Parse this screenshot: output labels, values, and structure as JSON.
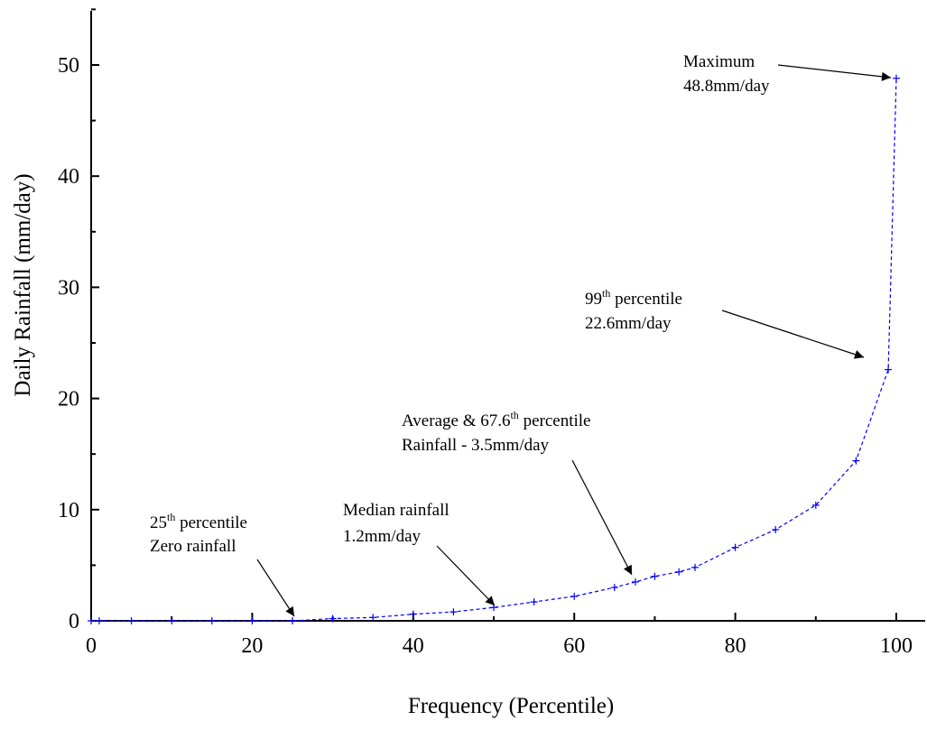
{
  "chart_data": {
    "type": "line",
    "xlabel": "Frequency (Percentile)",
    "ylabel": "Daily Rainfall (mm/day)",
    "xlim": [
      0,
      100
    ],
    "ylim": [
      0,
      50
    ],
    "x_ticks": [
      0,
      20,
      40,
      60,
      80,
      100
    ],
    "y_ticks": [
      0,
      10,
      20,
      30,
      40,
      50
    ],
    "grid": false,
    "series": [
      {
        "color": "#0000ff",
        "line_style": "dashed",
        "marker": "plus",
        "x": [
          0,
          1,
          5,
          10,
          15,
          20,
          25,
          30,
          35,
          40,
          45,
          50,
          55,
          60,
          65,
          67.6,
          70,
          73,
          75,
          80,
          85,
          90,
          95,
          99,
          100
        ],
        "y": [
          0,
          0,
          0,
          0,
          0,
          0,
          0,
          0.2,
          0.3,
          0.6,
          0.8,
          1.2,
          1.7,
          2.2,
          3.0,
          3.5,
          4.0,
          4.4,
          4.8,
          6.6,
          8.2,
          10.4,
          14.4,
          22.6,
          48.8
        ]
      }
    ],
    "annotations": [
      {
        "id": "max",
        "lines": [
          [
            {
              "t": "Maximum"
            }
          ],
          [
            {
              "t": "48.8mm/day"
            }
          ]
        ],
        "target": [
          100,
          48.8
        ]
      },
      {
        "id": "p99",
        "lines": [
          [
            {
              "t": "99"
            },
            {
              "t": "th",
              "sup": true
            },
            {
              "t": " percentile"
            }
          ],
          [
            {
              "t": "22.6mm/day"
            }
          ]
        ],
        "target": [
          99,
          22.6
        ]
      },
      {
        "id": "avg",
        "lines": [
          [
            {
              "t": "Average & 67.6"
            },
            {
              "t": "th",
              "sup": true
            },
            {
              "t": " percentile"
            }
          ],
          [
            {
              "t": "Rainfall - 3.5mm/day"
            }
          ]
        ],
        "target": [
          67.6,
          3.5
        ]
      },
      {
        "id": "median",
        "lines": [
          [
            {
              "t": "Median rainfall"
            }
          ],
          [
            {
              "t": "1.2mm/day"
            }
          ]
        ],
        "target": [
          50,
          1.2
        ]
      },
      {
        "id": "p25",
        "lines": [
          [
            {
              "t": "25"
            },
            {
              "t": "th",
              "sup": true
            },
            {
              "t": " percentile"
            }
          ],
          [
            {
              "t": "Zero rainfall"
            }
          ]
        ],
        "target": [
          25,
          0
        ]
      }
    ]
  }
}
